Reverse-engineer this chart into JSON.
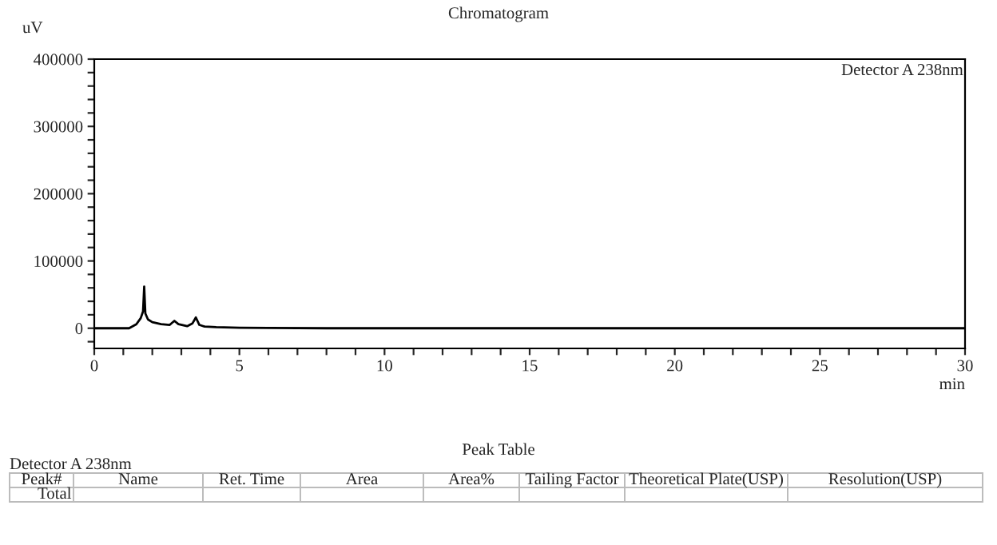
{
  "chart_data": {
    "type": "line",
    "title": "Chromatogram",
    "xlabel": "min",
    "ylabel": "uV",
    "x": [
      0,
      1.2,
      1.45,
      1.6,
      1.68,
      1.72,
      1.76,
      1.85,
      2.0,
      2.3,
      2.6,
      2.76,
      2.9,
      3.2,
      3.38,
      3.5,
      3.62,
      3.8,
      4.2,
      5.0,
      6.0,
      8.0,
      30
    ],
    "series": [
      {
        "color": "#000000",
        "values": [
          0,
          0,
          6000,
          15000,
          25000,
          62000,
          22000,
          13000,
          9000,
          6000,
          5000,
          11000,
          6000,
          3000,
          7000,
          16000,
          5000,
          2500,
          1500,
          800,
          400,
          0,
          0
        ]
      }
    ],
    "xlim": [
      0,
      30
    ],
    "xticks": [
      0,
      {
        "value": 1,
        "label": null
      },
      {
        "value": 2,
        "label": null
      },
      {
        "value": 3,
        "label": null
      },
      {
        "value": 4,
        "label": null
      },
      5,
      {
        "value": 6,
        "label": null
      },
      {
        "value": 7,
        "label": null
      },
      {
        "value": 8,
        "label": null
      },
      {
        "value": 9,
        "label": null
      },
      10,
      {
        "value": 11,
        "label": null
      },
      {
        "value": 12,
        "label": null
      },
      {
        "value": 13,
        "label": null
      },
      {
        "value": 14,
        "label": null
      },
      15,
      {
        "value": 16,
        "label": null
      },
      {
        "value": 17,
        "label": null
      },
      {
        "value": 18,
        "label": null
      },
      {
        "value": 19,
        "label": null
      },
      20,
      {
        "value": 21,
        "label": null
      },
      {
        "value": 22,
        "label": null
      },
      {
        "value": 23,
        "label": null
      },
      {
        "value": 24,
        "label": null
      },
      25,
      {
        "value": 26,
        "label": null
      },
      {
        "value": 27,
        "label": null
      },
      {
        "value": 28,
        "label": null
      },
      {
        "value": 29,
        "label": null
      },
      30
    ],
    "ylim": [
      -30000,
      400000
    ],
    "yticks": [
      {
        "value": -20000,
        "label": null
      },
      0,
      {
        "value": 20000,
        "label": null
      },
      {
        "value": 40000,
        "label": null
      },
      {
        "value": 60000,
        "label": null
      },
      {
        "value": 80000,
        "label": null
      },
      100000,
      {
        "value": 120000,
        "label": null
      },
      {
        "value": 140000,
        "label": null
      },
      {
        "value": 160000,
        "label": null
      },
      {
        "value": 180000,
        "label": null
      },
      200000,
      {
        "value": 220000,
        "label": null
      },
      {
        "value": 240000,
        "label": null
      },
      {
        "value": 260000,
        "label": null
      },
      {
        "value": 280000,
        "label": null
      },
      300000,
      {
        "value": 320000,
        "label": null
      },
      {
        "value": 340000,
        "label": null
      },
      {
        "value": 360000,
        "label": null
      },
      {
        "value": 380000,
        "label": null
      },
      400000
    ],
    "annotations": [
      "Detector A 238nm",
      "Peak Table",
      "Detector A 238nm",
      "Peak#",
      "Name",
      "Ret. Time",
      "Area",
      "Area%",
      "Tailing Factor",
      "Theoretical Plate(USP)",
      "Resolution(USP)",
      "Total"
    ]
  }
}
